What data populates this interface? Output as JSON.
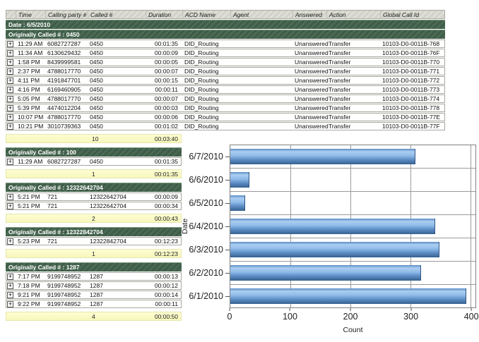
{
  "icons": {
    "expand": "+"
  },
  "table": {
    "columns": [
      "",
      "Time",
      "Calling party #",
      "Called #",
      "Duration",
      "ACD Name",
      "Agent",
      "Answered",
      "Action",
      "Global Call Id"
    ],
    "date_band": "Date : 6/5/2010",
    "groups": [
      {
        "label": "Originally Called # : 0450",
        "full_width": true,
        "rows": [
          {
            "time": "11:29 AM",
            "calling": "6082727287",
            "called": "0450",
            "duration": "00:01:35",
            "acd": "DID_Routing",
            "agent": "",
            "answered": "Unanswered",
            "action": "Transfer",
            "global_id": "10103-D0-0011B-768"
          },
          {
            "time": "11:34 AM",
            "calling": "6130629432",
            "called": "0450",
            "duration": "00:00:09",
            "acd": "DID_Routing",
            "agent": "",
            "answered": "Unanswered",
            "action": "Transfer",
            "global_id": "10103-D0-0011B-76F"
          },
          {
            "time": "1:58 PM",
            "calling": "8439999581",
            "called": "0450",
            "duration": "00:00:05",
            "acd": "DID_Routing",
            "agent": "",
            "answered": "Unanswered",
            "action": "Transfer",
            "global_id": "10103-D0-0011B-770"
          },
          {
            "time": "2:37 PM",
            "calling": "4788017770",
            "called": "0450",
            "duration": "00:00:07",
            "acd": "DID_Routing",
            "agent": "",
            "answered": "Unanswered",
            "action": "Transfer",
            "global_id": "10103-D0-0011B-771"
          },
          {
            "time": "4:11 PM",
            "calling": "4191847701",
            "called": "0450",
            "duration": "00:00:15",
            "acd": "DID_Routing",
            "agent": "",
            "answered": "Unanswered",
            "action": "Transfer",
            "global_id": "10103-D0-0011B-772"
          },
          {
            "time": "4:16 PM",
            "calling": "6169460905",
            "called": "0450",
            "duration": "00:00:11",
            "acd": "DID_Routing",
            "agent": "",
            "answered": "Unanswered",
            "action": "Transfer",
            "global_id": "10103-D0-0011B-773"
          },
          {
            "time": "5:05 PM",
            "calling": "4788017770",
            "called": "0450",
            "duration": "00:00:07",
            "acd": "DID_Routing",
            "agent": "",
            "answered": "Unanswered",
            "action": "Transfer",
            "global_id": "10103-D0-0011B-774"
          },
          {
            "time": "5:39 PM",
            "calling": "4474012204",
            "called": "0450",
            "duration": "00:00:03",
            "acd": "DID_Routing",
            "agent": "",
            "answered": "Unanswered",
            "action": "Transfer",
            "global_id": "10103-D0-0011B-778"
          },
          {
            "time": "10:07 PM",
            "calling": "4788017770",
            "called": "0450",
            "duration": "00:00:06",
            "acd": "DID_Routing",
            "agent": "",
            "answered": "Unanswered",
            "action": "Transfer",
            "global_id": "10103-D0-0011B-77E"
          },
          {
            "time": "10:21 PM",
            "calling": "3010739363",
            "called": "0450",
            "duration": "00:01:02",
            "acd": "DID_Routing",
            "agent": "",
            "answered": "Unanswered",
            "action": "Transfer",
            "global_id": "10103-D0-0011B-77F"
          }
        ],
        "summary": {
          "count": "10",
          "total_duration": "00:03:40"
        }
      },
      {
        "label": "Originally Called # : 100",
        "full_width": false,
        "rows": [
          {
            "time": "11:29 AM",
            "calling": "6082727287",
            "called": "0450",
            "duration": "00:01:35"
          }
        ],
        "summary": {
          "count": "1",
          "total_duration": "00:01:35"
        }
      },
      {
        "label": "Originally Called # : 12322642704",
        "full_width": false,
        "rows": [
          {
            "time": "5:21 PM",
            "calling": "721",
            "called": "12322642704",
            "duration": "00:00:09"
          },
          {
            "time": "5:21 PM",
            "calling": "721",
            "called": "12322642704",
            "duration": "00:00:34"
          }
        ],
        "summary": {
          "count": "2",
          "total_duration": "00:00:43"
        }
      },
      {
        "label": "Originally Called # : 12322842704",
        "full_width": false,
        "rows": [
          {
            "time": "5:23 PM",
            "calling": "721",
            "called": "12322842704",
            "duration": "00:12:23"
          }
        ],
        "summary": {
          "count": "1",
          "total_duration": "00:12:23"
        }
      },
      {
        "label": "Originally Called # : 1287",
        "full_width": false,
        "rows": [
          {
            "time": "7:17 PM",
            "calling": "9199748952",
            "called": "1287",
            "duration": "00:00:13"
          },
          {
            "time": "7:18 PM",
            "calling": "9199748952",
            "called": "1287",
            "duration": "00:00:12"
          },
          {
            "time": "9:21 PM",
            "calling": "9199748952",
            "called": "1287",
            "duration": "00:00:14"
          },
          {
            "time": "9:22 PM",
            "calling": "9199748952",
            "called": "1287",
            "duration": "00:00:11"
          }
        ],
        "summary": {
          "count": "4",
          "total_duration": "00:00:50"
        }
      }
    ]
  },
  "chart_data": {
    "type": "bar",
    "orientation": "horizontal",
    "categories": [
      "6/7/2010",
      "6/6/2010",
      "6/5/2010",
      "6/4/2010",
      "6/3/2010",
      "6/2/2010",
      "6/1/2010"
    ],
    "values": [
      308,
      32,
      25,
      341,
      348,
      318,
      393
    ],
    "xlabel": "Count",
    "ylabel": "Date",
    "xlim": [
      0,
      400
    ],
    "xticks": [
      "0",
      "100",
      "200",
      "300",
      "400"
    ],
    "grid": "both",
    "legend": "none",
    "bar_color_top": "#abcef2",
    "bar_color_bottom": "#35608f"
  },
  "colors": {
    "group_band_green": "#45644d",
    "summary_yellow": "#fbfbc8",
    "header_gray": "#d8d8d0"
  }
}
